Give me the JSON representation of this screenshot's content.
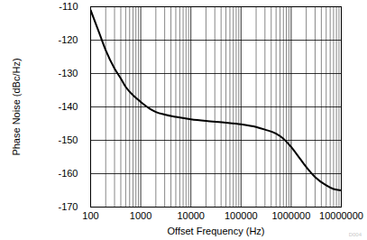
{
  "chart_data": {
    "type": "line",
    "x_label": "Offset Frequency (Hz)",
    "y_label": "Phase Noise (dBc/Hz)",
    "annotation": "D004",
    "x": [
      100,
      150,
      200,
      300,
      400,
      500,
      700,
      1000,
      1500,
      2000,
      3000,
      5000,
      10000,
      20000,
      50000,
      100000,
      200000,
      300000,
      500000,
      700000,
      1000000,
      1500000,
      2000000,
      3000000,
      5000000,
      7000000,
      10000000
    ],
    "values": [
      -111,
      -118,
      -123,
      -128.5,
      -131.5,
      -134,
      -136.5,
      -138.5,
      -140.5,
      -141.5,
      -142.3,
      -143,
      -143.7,
      -144.2,
      -144.7,
      -145.2,
      -146,
      -146.8,
      -148,
      -149.5,
      -152,
      -155.5,
      -158,
      -161,
      -163.5,
      -164.6,
      -165
    ],
    "color": "#000000",
    "xlim": [
      100,
      10000000
    ],
    "ylim": [
      -170,
      -110
    ],
    "xticks": [
      100,
      1000,
      10000,
      100000,
      1000000,
      10000000
    ],
    "yticks": [
      -170,
      -160,
      -150,
      -140,
      -130,
      -120,
      -110
    ],
    "log": "x",
    "grid": true
  }
}
